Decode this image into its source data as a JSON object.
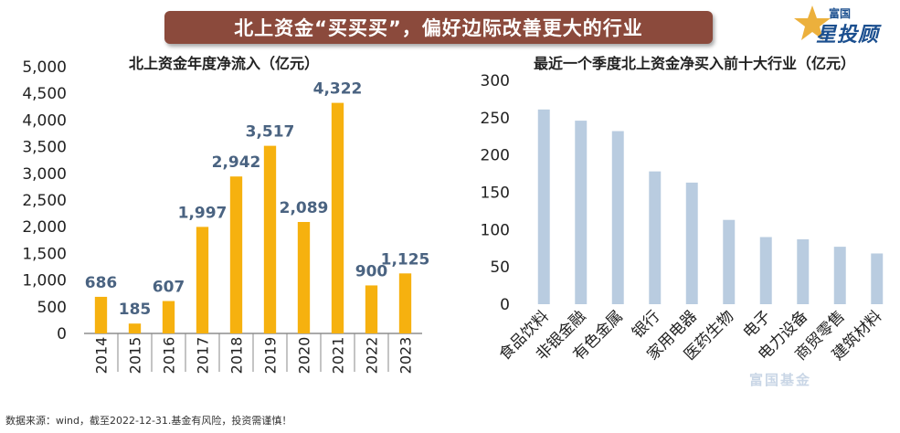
{
  "banner_title": "北上资金“买买买”，偏好边际改善更大的行业",
  "logo": {
    "top_text": "富国",
    "main_text": "星投顾"
  },
  "footnote": "数据来源：wind，截至2022-12-31.基金有风险，投资需谨慎！",
  "watermark_text": "富国基金",
  "colors": {
    "banner": "#8b4a3c",
    "bar_left": "#f6b10f",
    "bar_right": "#b9cce0",
    "label_left": "#4a6381",
    "text": "#222222"
  },
  "chart_data": [
    {
      "type": "bar",
      "title": "北上资金年度净流入（亿元）",
      "xlabel": "",
      "ylabel": "",
      "categories": [
        "2014",
        "2015",
        "2016",
        "2017",
        "2018",
        "2019",
        "2020",
        "2021",
        "2022",
        "2023"
      ],
      "values": [
        686,
        185,
        607,
        1997,
        2942,
        3517,
        2089,
        4322,
        900,
        1125
      ],
      "value_labels": [
        "686",
        "185",
        "607",
        "1,997",
        "2,942",
        "3,517",
        "2,089",
        "4,322",
        "900",
        "1,125"
      ],
      "ylim": [
        0,
        5000
      ],
      "yticks": [
        0,
        500,
        1000,
        1500,
        2000,
        2500,
        3000,
        3500,
        4000,
        4500,
        5000
      ],
      "ytick_labels": [
        "0",
        "500",
        "1,000",
        "1,500",
        "2,000",
        "2,500",
        "3,000",
        "3,500",
        "4,000",
        "4,500",
        "5,000"
      ],
      "grid": false
    },
    {
      "type": "bar",
      "title": "最近一个季度北上资金净买入前十大行业（亿元）",
      "xlabel": "",
      "ylabel": "",
      "categories": [
        "食品饮料",
        "非银金融",
        "有色金属",
        "银行",
        "家用电器",
        "医药生物",
        "电子",
        "电力设备",
        "商贸零售",
        "建筑材料"
      ],
      "values": [
        261,
        246,
        232,
        178,
        163,
        113,
        90,
        87,
        77,
        68
      ],
      "ylim": [
        0,
        300
      ],
      "yticks": [
        0,
        50,
        100,
        150,
        200,
        250,
        300
      ],
      "ytick_labels": [
        "0",
        "50",
        "100",
        "150",
        "200",
        "250",
        "300"
      ],
      "grid": false
    }
  ]
}
